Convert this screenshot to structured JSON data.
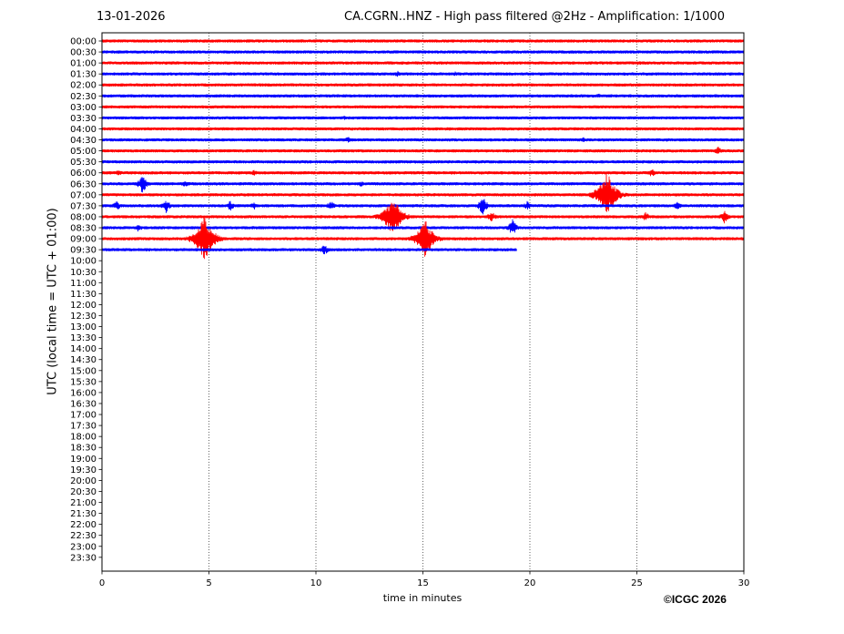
{
  "header": {
    "date": "13-01-2026",
    "title": "CA.CGRN..HNZ - High pass filtered @2Hz - Amplification: 1/1000"
  },
  "footer": {
    "copyright": "©ICGC 2026"
  },
  "chart_data": {
    "type": "line",
    "title": "CA.CGRN..HNZ - High pass filtered @2Hz - Amplification: 1/1000",
    "xlabel": "time in minutes",
    "ylabel": "UTC (local time = UTC + 01:00)",
    "xlim": [
      0,
      30
    ],
    "x_ticks": [
      0,
      5,
      10,
      15,
      20,
      25,
      30
    ],
    "grid": "vertical dotted lines at x ticks",
    "y_rows": [
      "00:00",
      "00:30",
      "01:00",
      "01:30",
      "02:00",
      "02:30",
      "03:00",
      "03:30",
      "04:00",
      "04:30",
      "05:00",
      "05:30",
      "06:00",
      "06:30",
      "07:00",
      "07:30",
      "08:00",
      "08:30",
      "09:00",
      "09:30",
      "10:00",
      "10:30",
      "11:00",
      "11:30",
      "12:00",
      "12:30",
      "13:00",
      "13:30",
      "14:00",
      "14:30",
      "15:00",
      "15:30",
      "16:00",
      "16:30",
      "17:00",
      "17:30",
      "18:00",
      "18:30",
      "19:00",
      "19:30",
      "20:00",
      "20:30",
      "21:00",
      "21:30",
      "22:00",
      "22:30",
      "23:00",
      "23:30"
    ],
    "trace_colors": [
      "#ff0000",
      "#0000ff"
    ],
    "traces": [
      {
        "row": "00:00",
        "end_minute": 30,
        "events": []
      },
      {
        "row": "00:30",
        "end_minute": 30,
        "events": []
      },
      {
        "row": "01:00",
        "end_minute": 30,
        "events": [
          {
            "x": 25.1,
            "amp": 3
          }
        ]
      },
      {
        "row": "01:30",
        "end_minute": 30,
        "events": [
          {
            "x": 13.8,
            "amp": 4
          },
          {
            "x": 16.5,
            "amp": 3
          }
        ]
      },
      {
        "row": "02:00",
        "end_minute": 30,
        "events": []
      },
      {
        "row": "02:30",
        "end_minute": 30,
        "events": [
          {
            "x": 23.2,
            "amp": 3
          }
        ]
      },
      {
        "row": "03:00",
        "end_minute": 30,
        "events": []
      },
      {
        "row": "03:30",
        "end_minute": 30,
        "events": [
          {
            "x": 11.3,
            "amp": 3
          }
        ]
      },
      {
        "row": "04:00",
        "end_minute": 30,
        "events": []
      },
      {
        "row": "04:30",
        "end_minute": 30,
        "events": [
          {
            "x": 11.5,
            "amp": 4
          },
          {
            "x": 22.5,
            "amp": 3
          },
          {
            "x": 26.4,
            "amp": 3
          }
        ]
      },
      {
        "row": "05:00",
        "end_minute": 30,
        "events": [
          {
            "x": 28.8,
            "amp": 5
          }
        ]
      },
      {
        "row": "05:30",
        "end_minute": 30,
        "events": []
      },
      {
        "row": "06:00",
        "end_minute": 30,
        "events": [
          {
            "x": 0.8,
            "amp": 4
          },
          {
            "x": 7.1,
            "amp": 4
          },
          {
            "x": 25.7,
            "amp": 5
          }
        ]
      },
      {
        "row": "06:30",
        "end_minute": 30,
        "events": [
          {
            "x": 1.9,
            "amp": 12
          },
          {
            "x": 3.9,
            "amp": 5
          },
          {
            "x": 12.1,
            "amp": 4
          }
        ]
      },
      {
        "row": "07:00",
        "end_minute": 30,
        "events": [
          {
            "x": 23.6,
            "amp": 28
          }
        ]
      },
      {
        "row": "07:30",
        "end_minute": 30,
        "events": [
          {
            "x": 0.7,
            "amp": 6
          },
          {
            "x": 3.0,
            "amp": 8
          },
          {
            "x": 6.0,
            "amp": 6
          },
          {
            "x": 7.1,
            "amp": 5
          },
          {
            "x": 10.7,
            "amp": 6
          },
          {
            "x": 17.8,
            "amp": 12
          },
          {
            "x": 19.9,
            "amp": 6
          },
          {
            "x": 26.9,
            "amp": 5
          }
        ]
      },
      {
        "row": "08:00",
        "end_minute": 30,
        "events": [
          {
            "x": 13.6,
            "amp": 24
          },
          {
            "x": 18.2,
            "amp": 7
          },
          {
            "x": 25.4,
            "amp": 6
          },
          {
            "x": 29.1,
            "amp": 8
          }
        ]
      },
      {
        "row": "08:30",
        "end_minute": 30,
        "events": [
          {
            "x": 1.7,
            "amp": 5
          },
          {
            "x": 19.2,
            "amp": 10
          }
        ]
      },
      {
        "row": "09:00",
        "end_minute": 30,
        "events": [
          {
            "x": 4.8,
            "amp": 28
          },
          {
            "x": 15.1,
            "amp": 22
          }
        ]
      },
      {
        "row": "09:30",
        "end_minute": 19.4,
        "events": [
          {
            "x": 10.4,
            "amp": 7
          }
        ]
      }
    ]
  }
}
